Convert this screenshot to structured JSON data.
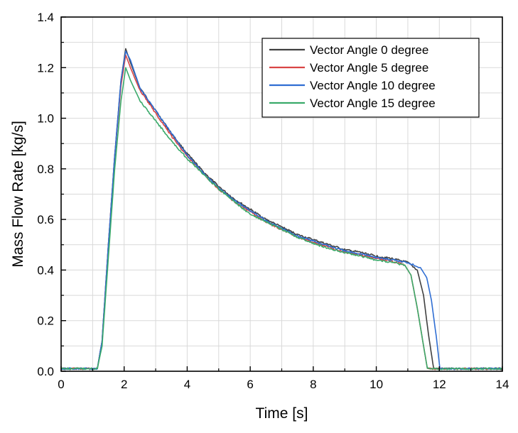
{
  "chart_data": {
    "type": "line",
    "title": "",
    "xlabel": "Time [s]",
    "ylabel": "Mass Flow Rate [kg/s]",
    "xlim": [
      0,
      14
    ],
    "ylim": [
      0,
      1.4
    ],
    "xticks": [
      0,
      2,
      4,
      6,
      8,
      10,
      12,
      14
    ],
    "yticks": [
      0.0,
      0.2,
      0.4,
      0.6,
      0.8,
      1.0,
      1.2,
      1.4
    ],
    "xtick_labels": [
      "0",
      "2",
      "4",
      "6",
      "8",
      "10",
      "12",
      "14"
    ],
    "ytick_labels": [
      "0.0",
      "0.2",
      "0.4",
      "0.6",
      "0.8",
      "1.0",
      "1.2",
      "1.4"
    ],
    "grid": true,
    "legend_position": "top-right",
    "series": [
      {
        "name": "Vector Angle 0 degree",
        "color": "#404040",
        "points": [
          [
            0,
            0.01
          ],
          [
            1.15,
            0.01
          ],
          [
            1.3,
            0.12
          ],
          [
            1.5,
            0.5
          ],
          [
            1.7,
            0.85
          ],
          [
            1.9,
            1.15
          ],
          [
            2.05,
            1.275
          ],
          [
            2.2,
            1.22
          ],
          [
            2.5,
            1.12
          ],
          [
            3,
            1.03
          ],
          [
            3.5,
            0.94
          ],
          [
            4,
            0.86
          ],
          [
            4.5,
            0.79
          ],
          [
            5,
            0.73
          ],
          [
            5.5,
            0.68
          ],
          [
            6,
            0.64
          ],
          [
            6.5,
            0.6
          ],
          [
            7,
            0.57
          ],
          [
            7.5,
            0.54
          ],
          [
            8,
            0.52
          ],
          [
            8.5,
            0.5
          ],
          [
            9,
            0.48
          ],
          [
            9.5,
            0.47
          ],
          [
            10,
            0.455
          ],
          [
            10.5,
            0.445
          ],
          [
            11,
            0.43
          ],
          [
            11.3,
            0.4
          ],
          [
            11.5,
            0.3
          ],
          [
            11.65,
            0.15
          ],
          [
            11.82,
            0.01
          ],
          [
            14,
            0.01
          ]
        ]
      },
      {
        "name": "Vector Angle 5 degree",
        "color": "#d94545",
        "points": [
          [
            0,
            0.01
          ],
          [
            1.15,
            0.01
          ],
          [
            1.3,
            0.12
          ],
          [
            1.5,
            0.5
          ],
          [
            1.7,
            0.85
          ],
          [
            1.9,
            1.13
          ],
          [
            2.05,
            1.25
          ],
          [
            2.2,
            1.2
          ],
          [
            2.5,
            1.11
          ],
          [
            3,
            1.02
          ],
          [
            3.5,
            0.93
          ],
          [
            4,
            0.85
          ],
          [
            4.5,
            0.78
          ],
          [
            5,
            0.72
          ],
          [
            5.5,
            0.67
          ],
          [
            6,
            0.63
          ],
          [
            6.5,
            0.59
          ],
          [
            7,
            0.56
          ],
          [
            7.5,
            0.53
          ],
          [
            8,
            0.51
          ],
          [
            8.5,
            0.49
          ],
          [
            9,
            0.47
          ],
          [
            9.5,
            0.46
          ],
          [
            10,
            0.445
          ],
          [
            10.5,
            0.435
          ],
          [
            10.9,
            0.42
          ],
          [
            11.1,
            0.38
          ],
          [
            11.3,
            0.25
          ],
          [
            11.5,
            0.1
          ],
          [
            11.62,
            0.01
          ],
          [
            14,
            0.01
          ]
        ]
      },
      {
        "name": "Vector Angle 10 degree",
        "color": "#2f6ed3",
        "points": [
          [
            0,
            0.01
          ],
          [
            1.15,
            0.01
          ],
          [
            1.3,
            0.12
          ],
          [
            1.5,
            0.5
          ],
          [
            1.7,
            0.85
          ],
          [
            1.9,
            1.15
          ],
          [
            2.05,
            1.265
          ],
          [
            2.2,
            1.23
          ],
          [
            2.5,
            1.12
          ],
          [
            3,
            1.03
          ],
          [
            3.5,
            0.94
          ],
          [
            4,
            0.855
          ],
          [
            4.5,
            0.785
          ],
          [
            5,
            0.725
          ],
          [
            5.5,
            0.675
          ],
          [
            6,
            0.635
          ],
          [
            6.5,
            0.595
          ],
          [
            7,
            0.565
          ],
          [
            7.5,
            0.535
          ],
          [
            8,
            0.515
          ],
          [
            8.5,
            0.495
          ],
          [
            9,
            0.475
          ],
          [
            9.5,
            0.465
          ],
          [
            10,
            0.45
          ],
          [
            10.5,
            0.44
          ],
          [
            11,
            0.43
          ],
          [
            11.4,
            0.41
          ],
          [
            11.6,
            0.37
          ],
          [
            11.75,
            0.28
          ],
          [
            11.9,
            0.14
          ],
          [
            12.02,
            0.01
          ],
          [
            14,
            0.01
          ]
        ]
      },
      {
        "name": "Vector Angle 15 degree",
        "color": "#3aaa6a",
        "points": [
          [
            0,
            0.01
          ],
          [
            1.15,
            0.01
          ],
          [
            1.3,
            0.1
          ],
          [
            1.5,
            0.45
          ],
          [
            1.7,
            0.8
          ],
          [
            1.9,
            1.07
          ],
          [
            2.05,
            1.2
          ],
          [
            2.2,
            1.15
          ],
          [
            2.5,
            1.07
          ],
          [
            3,
            0.99
          ],
          [
            3.5,
            0.91
          ],
          [
            4,
            0.84
          ],
          [
            4.5,
            0.78
          ],
          [
            5,
            0.72
          ],
          [
            5.5,
            0.67
          ],
          [
            6,
            0.62
          ],
          [
            6.5,
            0.59
          ],
          [
            7,
            0.56
          ],
          [
            7.5,
            0.53
          ],
          [
            8,
            0.505
          ],
          [
            8.5,
            0.485
          ],
          [
            9,
            0.47
          ],
          [
            9.5,
            0.455
          ],
          [
            10,
            0.44
          ],
          [
            10.5,
            0.43
          ],
          [
            10.9,
            0.42
          ],
          [
            11.1,
            0.38
          ],
          [
            11.3,
            0.25
          ],
          [
            11.5,
            0.1
          ],
          [
            11.62,
            0.01
          ],
          [
            14,
            0.01
          ]
        ]
      }
    ]
  }
}
